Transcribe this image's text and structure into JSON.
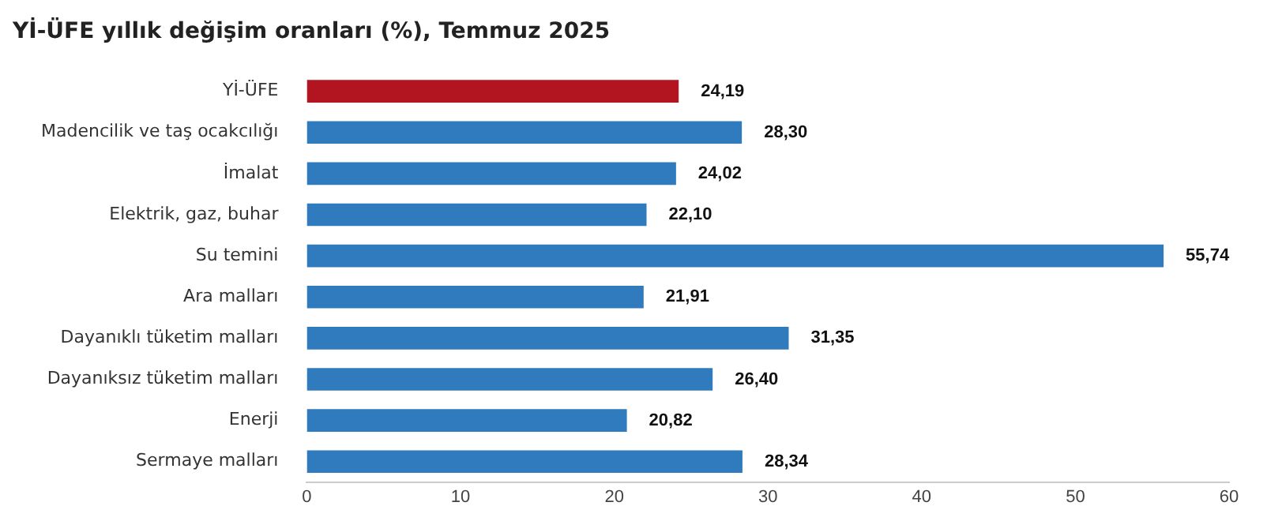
{
  "chart_data": {
    "type": "bar",
    "orientation": "horizontal",
    "title": "Yİ-ÜFE yıllık değişim oranları (%), Temmuz 2025",
    "categories": [
      "Yİ-ÜFE",
      "Madencilik ve taş ocakcılığı",
      "İmalat",
      "Elektrik, gaz, buhar",
      "Su temini",
      "Ara malları",
      "Dayanıklı tüketim malları",
      "Dayanıksız tüketim malları",
      "Enerji",
      "Sermaye malları"
    ],
    "values": [
      24.19,
      28.3,
      24.02,
      22.1,
      55.74,
      21.91,
      31.35,
      26.4,
      20.82,
      28.34
    ],
    "value_labels": [
      "24,19",
      "28,30",
      "24,02",
      "22,10",
      "55,74",
      "21,91",
      "31,35",
      "26,40",
      "20,82",
      "28,34"
    ],
    "colors": [
      "#b2151f",
      "#2f7bbd",
      "#2f7bbd",
      "#2f7bbd",
      "#2f7bbd",
      "#2f7bbd",
      "#2f7bbd",
      "#2f7bbd",
      "#2f7bbd",
      "#2f7bbd"
    ],
    "xlim": [
      0,
      60
    ],
    "xticks": [
      0,
      10,
      20,
      30,
      40,
      50,
      60
    ],
    "grid": false,
    "legend": false
  }
}
